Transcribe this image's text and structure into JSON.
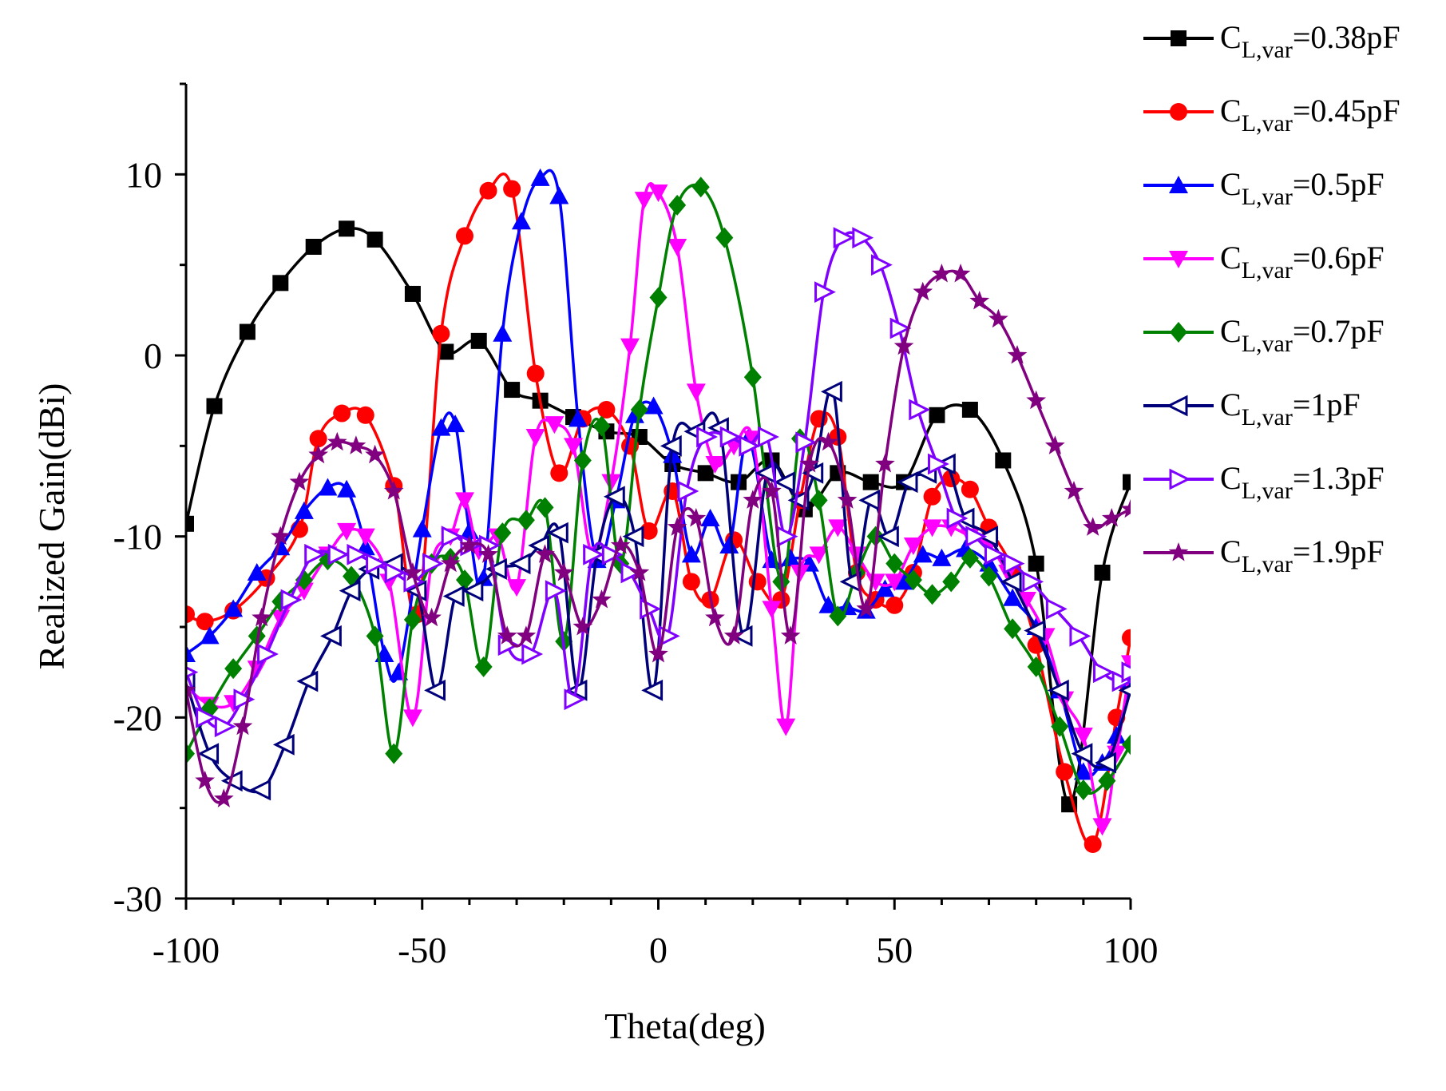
{
  "chart_data": {
    "type": "line",
    "title": "",
    "xlabel": "Theta(deg)",
    "ylabel": "Realized Gain(dBi)",
    "xlim": [
      -100,
      100
    ],
    "ylim": [
      -30,
      15
    ],
    "xticks": [
      -100,
      -50,
      0,
      50,
      100
    ],
    "yticks": [
      -30,
      -20,
      -10,
      0,
      10
    ],
    "grid": false,
    "legend_position": "top-right outside",
    "legend_prefix": "C",
    "legend_subscript": "L,var",
    "series": [
      {
        "name": "CL,var=0.38pF",
        "label_value": "=0.38pF",
        "color": "#000000",
        "marker": "square",
        "x": [
          -100,
          -94,
          -87,
          -80,
          -73,
          -66,
          -60,
          -52,
          -45,
          -38,
          -31,
          -25,
          -18,
          -11,
          -4,
          3,
          10,
          17,
          24,
          31,
          38,
          45,
          52,
          59,
          66,
          73,
          80,
          87,
          94,
          100
        ],
        "y": [
          -9.3,
          -2.8,
          1.3,
          4,
          6,
          7,
          6.4,
          3.4,
          0.2,
          0.8,
          -1.9,
          -2.5,
          -3.4,
          -4.2,
          -4.5,
          -6,
          -6.5,
          -7,
          -5.8,
          -8.5,
          -6.5,
          -7,
          -7,
          -3.3,
          -3,
          -5.8,
          -11.5,
          -24.8,
          -12,
          -7
        ]
      },
      {
        "name": "CL,var=0.45pF",
        "label_value": "=0.45pF",
        "color": "#ff0000",
        "marker": "circle",
        "x": [
          -100,
          -96,
          -90,
          -83,
          -76,
          -72,
          -67,
          -62,
          -56,
          -51,
          -46,
          -41,
          -36,
          -31,
          -26,
          -21,
          -16,
          -11,
          -6,
          -2,
          3,
          7,
          11,
          16,
          21,
          26,
          30,
          34,
          38,
          42,
          46,
          50,
          54,
          58,
          62,
          66,
          70,
          75,
          80,
          86,
          92,
          97,
          100
        ],
        "y": [
          -14.3,
          -14.7,
          -14.1,
          -12.3,
          -9.6,
          -4.6,
          -3.2,
          -3.3,
          -7.2,
          -14.3,
          1.2,
          6.6,
          9.1,
          9.2,
          -1,
          -6.5,
          -3.5,
          -3,
          -5,
          -9.7,
          -7.5,
          -12.5,
          -13.5,
          -10.2,
          -12.5,
          -13.5,
          -8,
          -3.5,
          -4.5,
          -12,
          -13.5,
          -13.8,
          -12,
          -7.8,
          -6.8,
          -7.4,
          -9.5,
          -11.8,
          -16,
          -23,
          -27,
          -20,
          -15.6
        ]
      },
      {
        "name": "CL,var=0.5pF",
        "label_value": "=0.5pF",
        "color": "#0000ff",
        "marker": "triangle-up",
        "x": [
          -100,
          -95,
          -90,
          -85,
          -80,
          -75,
          -70,
          -66,
          -62,
          -58,
          -55,
          -50,
          -46,
          -43,
          -40,
          -37,
          -33,
          -29,
          -25,
          -21,
          -17,
          -13,
          -9,
          -5,
          -1,
          3,
          7,
          11,
          15,
          19,
          24,
          28,
          32,
          36,
          40,
          44,
          48,
          52,
          56,
          60,
          65,
          70,
          75,
          80,
          85,
          90,
          94,
          97,
          100
        ],
        "y": [
          -16.5,
          -15.5,
          -14,
          -12,
          -10.6,
          -8.6,
          -7.3,
          -7.4,
          -10.6,
          -16.5,
          -17.5,
          -9.6,
          -4,
          -3.8,
          -9.7,
          -12.3,
          1.2,
          7.4,
          9.8,
          8.8,
          -3.5,
          -11.3,
          -8,
          -3.3,
          -2.8,
          -5.5,
          -11,
          -9,
          -10.5,
          -4.6,
          -11.3,
          -11.2,
          -11.5,
          -13.8,
          -13.9,
          -14.1,
          -12.9,
          -12.5,
          -11,
          -11.2,
          -10.7,
          -11.5,
          -13.4,
          -15,
          -18.5,
          -23,
          -22.5,
          -21,
          -18
        ]
      },
      {
        "name": "CL,var=0.6pF",
        "label_value": "=0.6pF",
        "color": "#ff00ff",
        "marker": "triangle-down",
        "x": [
          -100,
          -95,
          -90,
          -85,
          -80,
          -75,
          -70,
          -66,
          -62,
          -57,
          -52,
          -48,
          -44,
          -41,
          -38,
          -34,
          -30,
          -26,
          -22,
          -18,
          -14,
          -10,
          -6,
          -3,
          0,
          4,
          8,
          12,
          16,
          20,
          24,
          27,
          30,
          34,
          38,
          42,
          46,
          50,
          54,
          58,
          62,
          66,
          70,
          74,
          78,
          82,
          86,
          90,
          94,
          97,
          100
        ],
        "y": [
          -18.3,
          -19.3,
          -19.2,
          -17.3,
          -14.5,
          -13,
          -11,
          -9.7,
          -10,
          -12.5,
          -20,
          -11.5,
          -10,
          -8,
          -10.8,
          -10,
          -12.8,
          -4.5,
          -3.8,
          -5,
          -11,
          -7,
          0.5,
          8.6,
          9,
          6,
          -2,
          -6,
          -5,
          -4.6,
          -14,
          -20.5,
          -12,
          -11,
          -9.5,
          -11,
          -12.5,
          -12.5,
          -10.5,
          -9.5,
          -9.5,
          -10,
          -10.5,
          -12,
          -13.5,
          -15.5,
          -19,
          -21,
          -26,
          -22,
          -17
        ]
      },
      {
        "name": "CL,var=0.7pF",
        "label_value": "=0.7pF",
        "color": "#008000",
        "marker": "diamond",
        "x": [
          -100,
          -95,
          -90,
          -85,
          -80,
          -75,
          -70,
          -65,
          -60,
          -56,
          -52,
          -48,
          -44,
          -41,
          -37,
          -33,
          -28,
          -24,
          -20,
          -16,
          -12,
          -8,
          -4,
          0,
          4,
          9,
          14,
          20,
          26,
          30,
          34,
          38,
          42,
          46,
          50,
          54,
          58,
          62,
          66,
          70,
          75,
          80,
          85,
          90,
          95,
          100
        ],
        "y": [
          -22,
          -19.5,
          -17.3,
          -15.5,
          -13.6,
          -12.4,
          -11.3,
          -12.2,
          -15.5,
          -22,
          -14.6,
          -11.5,
          -11.2,
          -12.4,
          -17.2,
          -9.8,
          -9.1,
          -8.4,
          -15.8,
          -5.8,
          -3.9,
          -11.5,
          -3,
          3.2,
          8.3,
          9.3,
          6.5,
          -1.2,
          -12.5,
          -4.6,
          -8,
          -14.4,
          -12,
          -10,
          -11.5,
          -12.4,
          -13.2,
          -12.5,
          -11.2,
          -12.2,
          -15.1,
          -17.2,
          -20.5,
          -24,
          -23.5,
          -21.5
        ]
      },
      {
        "name": "CL,var=1pF",
        "label_value": "=1pF",
        "color": "#00007b",
        "marker": "triangle-left",
        "x": [
          -100,
          -95,
          -90,
          -84,
          -79,
          -74,
          -69,
          -65,
          -61,
          -56,
          -51,
          -47,
          -43,
          -39,
          -34,
          -29,
          -25,
          -21,
          -17,
          -13,
          -9,
          -5,
          -1,
          3,
          8,
          13,
          18,
          23,
          27,
          30,
          33,
          37,
          41,
          45,
          49,
          53,
          57,
          61,
          65,
          70,
          75,
          80,
          85,
          90,
          95,
          100
        ],
        "y": [
          -18,
          -22,
          -23.5,
          -24,
          -21.5,
          -18,
          -15.5,
          -13,
          -11.8,
          -11.5,
          -13,
          -18.5,
          -13.3,
          -13,
          -11.8,
          -11.5,
          -10.5,
          -9.8,
          -18.5,
          -11,
          -7.8,
          -10,
          -18.5,
          -5,
          -4.2,
          -4,
          -15.5,
          -6.5,
          -7,
          -8,
          -6.5,
          -2,
          -12.5,
          -8,
          -10,
          -7,
          -6.5,
          -6,
          -9,
          -10,
          -12.5,
          -15.2,
          -18.5,
          -22,
          -22.5,
          -18.5
        ]
      },
      {
        "name": "CL,var=1.3pF",
        "label_value": "=1.3pF",
        "color": "#8000ff",
        "marker": "triangle-right",
        "x": [
          -100,
          -96,
          -92,
          -88,
          -83,
          -78,
          -73,
          -68,
          -64,
          -60,
          -56,
          -52,
          -48,
          -44,
          -40,
          -36,
          -32,
          -27,
          -22,
          -18,
          -14,
          -10,
          -6,
          -2,
          2,
          6,
          10,
          15,
          19,
          23,
          27,
          31,
          35,
          39,
          43,
          47,
          51,
          55,
          59,
          63,
          67,
          71,
          75,
          79,
          84,
          89,
          94,
          98,
          100
        ],
        "y": [
          -17.5,
          -20,
          -20.5,
          -19,
          -16.5,
          -13.5,
          -11,
          -11,
          -11,
          -11.5,
          -12,
          -12.5,
          -11.5,
          -10,
          -10.5,
          -10.5,
          -16,
          -16.5,
          -13,
          -19,
          -11,
          -11,
          -12,
          -14,
          -15.5,
          -7.5,
          -4.5,
          -4.5,
          -5,
          -4.5,
          -10,
          -4.8,
          3.5,
          6.5,
          6.5,
          5,
          1.5,
          -3,
          -6,
          -9,
          -10,
          -11,
          -11.5,
          -12.5,
          -14,
          -15.5,
          -17.5,
          -18,
          -17.5
        ]
      },
      {
        "name": "CL,var=1.9pF",
        "label_value": "=1.9pF",
        "color": "#800080",
        "marker": "star",
        "x": [
          -100,
          -96,
          -92,
          -88,
          -84,
          -80,
          -76,
          -72,
          -68,
          -64,
          -60,
          -56,
          -52,
          -48,
          -44,
          -40,
          -36,
          -32,
          -28,
          -24,
          -20,
          -16,
          -12,
          -8,
          -4,
          0,
          4,
          8,
          12,
          16,
          20,
          24,
          28,
          32,
          36,
          40,
          44,
          48,
          52,
          56,
          60,
          64,
          68,
          72,
          76,
          80,
          84,
          88,
          92,
          96,
          100
        ],
        "y": [
          -18.5,
          -23.5,
          -24.5,
          -20.5,
          -14.5,
          -10,
          -7,
          -5.5,
          -4.8,
          -5,
          -5.5,
          -7.5,
          -12,
          -14.5,
          -11.5,
          -10.5,
          -11,
          -15.5,
          -15.5,
          -11,
          -12,
          -15,
          -13.5,
          -10.5,
          -12,
          -16.5,
          -9.5,
          -9,
          -14.5,
          -15.5,
          -8,
          -7.5,
          -15.5,
          -6,
          -4.8,
          -8,
          -14,
          -6,
          0.5,
          3.5,
          4.5,
          4.5,
          3,
          2,
          0,
          -2.5,
          -5,
          -7.5,
          -9.5,
          -9,
          -8.5
        ]
      }
    ]
  }
}
